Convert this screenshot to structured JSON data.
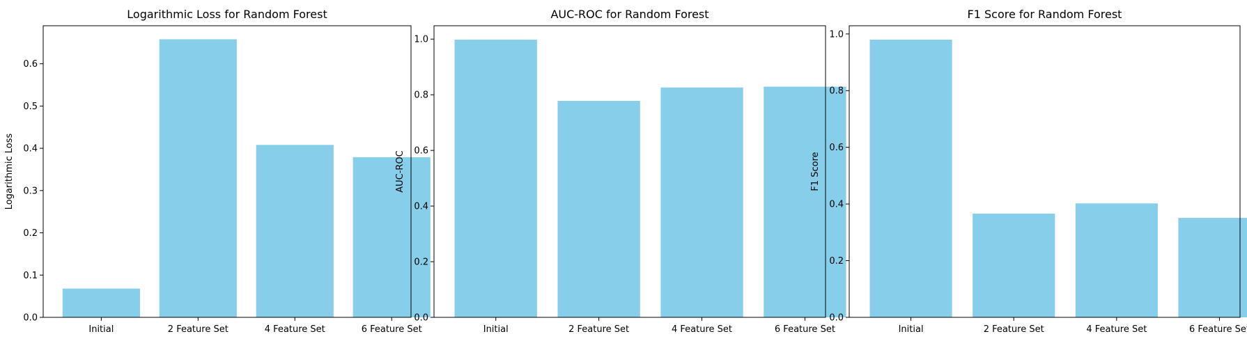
{
  "chart_data": [
    {
      "type": "bar",
      "title": "Logarithmic Loss for Random Forest",
      "xlabel": "",
      "ylabel": "Logarithmic Loss",
      "categories": [
        "Initial",
        "2 Feature Set",
        "4 Feature Set",
        "6 Feature Set"
      ],
      "values": [
        0.068,
        0.658,
        0.408,
        0.379
      ],
      "ylim": [
        0,
        0.69
      ],
      "yticks": [
        0.0,
        0.1,
        0.2,
        0.3,
        0.4,
        0.5,
        0.6
      ],
      "ytick_labels": [
        "0.0",
        "0.1",
        "0.2",
        "0.3",
        "0.4",
        "0.5",
        "0.6"
      ],
      "grid": false,
      "color": "#87ceeb"
    },
    {
      "type": "bar",
      "title": "AUC-ROC for Random Forest",
      "xlabel": "",
      "ylabel": "AUC-ROC",
      "categories": [
        "Initial",
        "2 Feature Set",
        "4 Feature Set",
        "6 Feature Set"
      ],
      "values": [
        0.998,
        0.778,
        0.826,
        0.829
      ],
      "ylim": [
        0,
        1.048
      ],
      "yticks": [
        0.0,
        0.2,
        0.4,
        0.6,
        0.8,
        1.0
      ],
      "ytick_labels": [
        "0.0",
        "0.2",
        "0.4",
        "0.6",
        "0.8",
        "1.0"
      ],
      "grid": false,
      "color": "#87ceeb"
    },
    {
      "type": "bar",
      "title": "F1 Score for Random Forest",
      "xlabel": "",
      "ylabel": "F1 Score",
      "categories": [
        "Initial",
        "2 Feature Set",
        "4 Feature Set",
        "6 Feature Set"
      ],
      "values": [
        0.98,
        0.366,
        0.402,
        0.351
      ],
      "ylim": [
        0,
        1.029
      ],
      "yticks": [
        0.0,
        0.2,
        0.4,
        0.6,
        0.8,
        1.0
      ],
      "ytick_labels": [
        "0.0",
        "0.2",
        "0.4",
        "0.6",
        "0.8",
        "1.0"
      ],
      "grid": false,
      "color": "#87ceeb"
    }
  ]
}
